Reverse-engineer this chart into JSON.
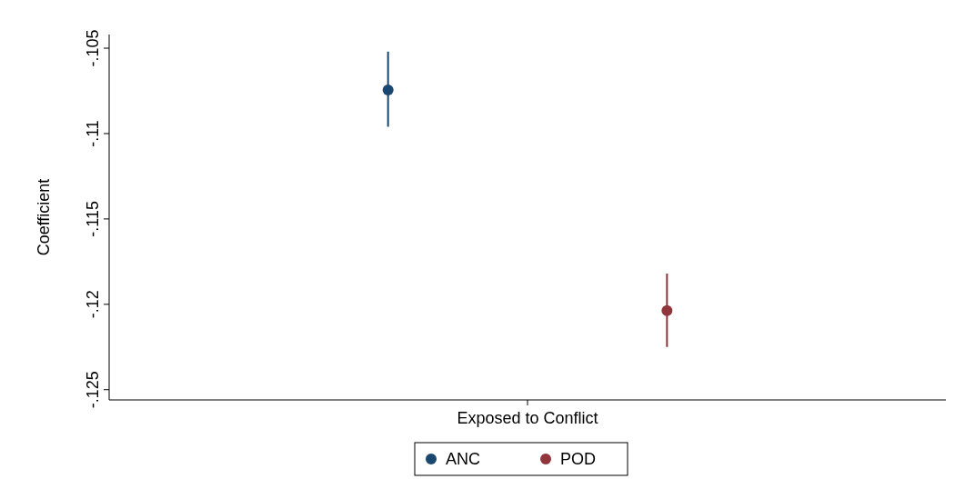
{
  "chart_data": {
    "type": "scatter",
    "ylabel": "Coefficient",
    "categories": [
      "Exposed to Conflict"
    ],
    "ylim": [
      -0.1256,
      -0.1042
    ],
    "yticks": [
      {
        "value": -0.105,
        "label": "-.105"
      },
      {
        "value": -0.11,
        "label": "-.11"
      },
      {
        "value": -0.115,
        "label": "-.115"
      },
      {
        "value": -0.12,
        "label": "-.12"
      },
      {
        "value": -0.125,
        "label": "-.125"
      }
    ],
    "series": [
      {
        "name": "ANC",
        "color": "#1a476f",
        "values": [
          -0.10745
        ],
        "errors": [
          [
            -0.1096,
            -0.1052
          ]
        ]
      },
      {
        "name": "POD",
        "color": "#90353b",
        "values": [
          -0.12037
        ],
        "errors": [
          [
            -0.1225,
            -0.1182
          ]
        ]
      }
    ],
    "marker": "circle",
    "grid": false,
    "legend": "bottom"
  }
}
